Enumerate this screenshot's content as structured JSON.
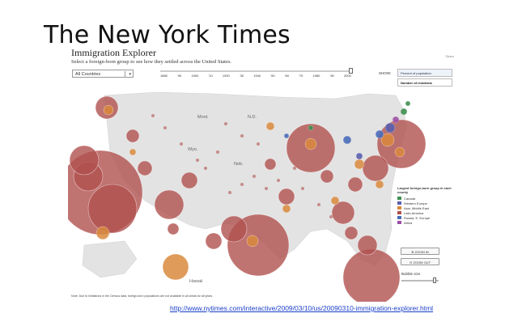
{
  "slide": {
    "title": "The New York Times",
    "url": "http://www.nytimes.com/interactive/2009/03/10/us/20090310-immigration-explorer.html"
  },
  "app": {
    "title": "Immigration Explorer",
    "subtitle": "Select a foreign-born group to see how they settled across the United States.",
    "group_select": "All Countries",
    "share": "Share",
    "timeline": [
      "1880",
      "'90",
      "1900",
      "'10",
      "1920",
      "'30",
      "1940",
      "'50",
      "'60",
      "'70",
      "1980",
      "'90",
      "2000"
    ],
    "timeline_selected": "2000",
    "show_label": "SHOW:",
    "show_options": [
      "Percent of population",
      "Number of residents"
    ],
    "show_selected": "Number of residents",
    "state_labels": [
      "Mont.",
      "N.D.",
      "Wyo.",
      "Neb.",
      "Hawaii"
    ],
    "legend": {
      "title": "Largest foreign-born group in each county",
      "items": [
        {
          "label": "Canada",
          "color": "#3f8f4f"
        },
        {
          "label": "Western Europe",
          "color": "#5a5fae"
        },
        {
          "label": "Asia, Middle East",
          "color": "#d9893c"
        },
        {
          "label": "Latin America",
          "color": "#b0514f"
        },
        {
          "label": "Russia, E. Europe",
          "color": "#4a6cb8"
        },
        {
          "label": "Africa",
          "color": "#9c4fa3"
        }
      ]
    },
    "zoom_in": "ZOOM IN",
    "zoom_out": "ZOOM OUT",
    "bubble_size": "Bubble size",
    "note": "Note: Due to limitations in the Census data, foreign-born populations are not available in all areas for all years."
  }
}
